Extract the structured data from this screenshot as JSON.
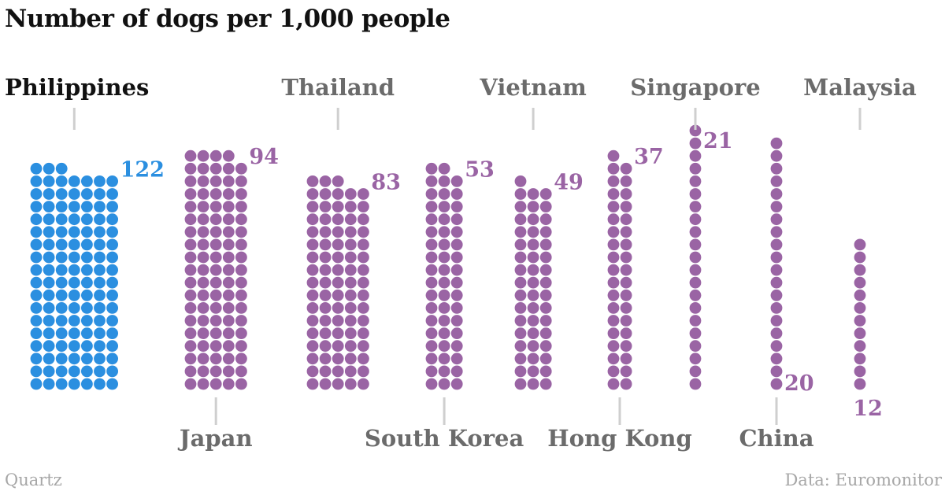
{
  "page": {
    "title": "Number of dogs per 1,000 people",
    "credit": "Quartz",
    "source": "Data: Euromonitor"
  },
  "colors": {
    "highlight": "#2b8fe0",
    "default": "#9a64a4",
    "label_highlight": "#111111",
    "label_default": "#6b6b6b",
    "tick": "#cfcfcf"
  },
  "chart_data": {
    "type": "unit-dot",
    "title": "Number of dogs per 1,000 people",
    "unit": "dogs per 1,000 people",
    "highlight": "Philippines",
    "categories": [
      "Philippines",
      "Japan",
      "Thailand",
      "South Korea",
      "Vietnam",
      "Hong Kong",
      "Singapore",
      "China",
      "Malaysia"
    ],
    "values": [
      122,
      94,
      83,
      53,
      49,
      37,
      21,
      20,
      12
    ],
    "value_labels": [
      "122",
      "94",
      "83",
      "53",
      "49",
      "37",
      "21",
      "20",
      "12"
    ],
    "label_side": [
      "top",
      "bottom",
      "top",
      "bottom",
      "top",
      "bottom",
      "top",
      "bottom",
      "top"
    ]
  }
}
